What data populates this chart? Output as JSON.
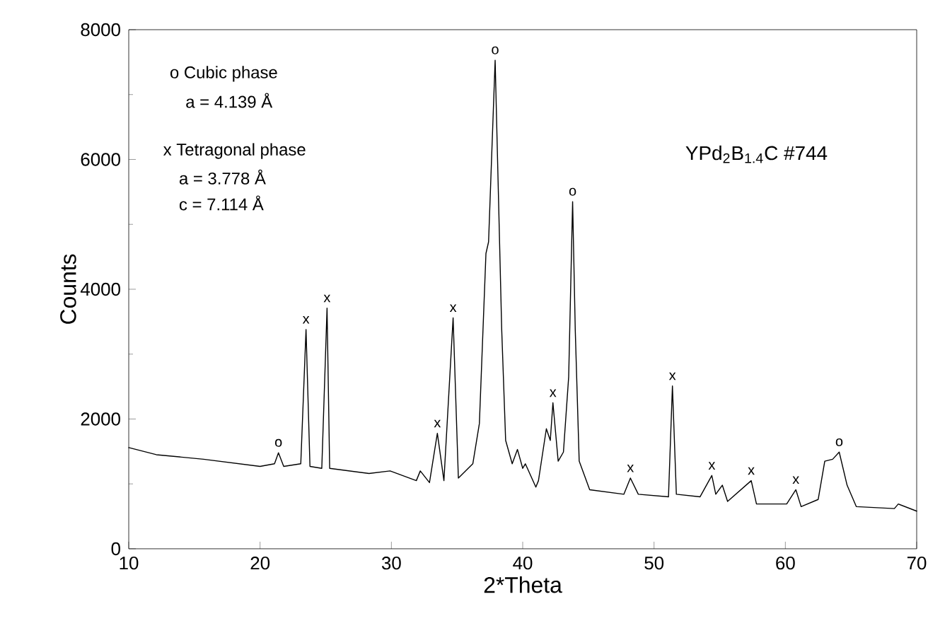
{
  "chart_data": {
    "type": "line",
    "xlabel": "2*Theta",
    "ylabel": "Counts",
    "color": "#000000",
    "x": [
      10,
      12.1,
      15.7,
      20,
      21.1,
      21.4,
      21.8,
      23.1,
      23.5,
      23.8,
      24.7,
      25.1,
      25.3,
      28.3,
      29.9,
      31.9,
      32.2,
      32.9,
      33.5,
      34.0,
      34.7,
      35.1,
      36.2,
      36.7,
      37.2,
      37.4,
      37.9,
      38.4,
      38.7,
      39.2,
      39.6,
      40.0,
      40.2,
      41.0,
      41.2,
      41.8,
      42.1,
      42.3,
      42.7,
      43.1,
      43.5,
      43.8,
      44.0,
      44.3,
      45.1,
      47.7,
      48.2,
      48.8,
      51.1,
      51.4,
      51.7,
      53.5,
      54.4,
      54.7,
      55.2,
      55.6,
      57.4,
      57.8,
      60.1,
      60.8,
      61.2,
      62.5,
      63.0,
      63.6,
      64.1,
      64.7,
      65.4,
      68.3,
      68.6,
      70
    ],
    "values": [
      1560,
      1450,
      1380,
      1270,
      1310,
      1480,
      1270,
      1310,
      3380,
      1270,
      1240,
      3710,
      1240,
      1160,
      1200,
      1050,
      1200,
      1020,
      1780,
      1050,
      3560,
      1090,
      1310,
      1930,
      4550,
      4730,
      7530,
      3380,
      1670,
      1310,
      1530,
      1240,
      1310,
      950,
      1050,
      1850,
      1670,
      2250,
      1350,
      1490,
      2650,
      5350,
      3380,
      1350,
      910,
      840,
      1090,
      840,
      800,
      2510,
      840,
      800,
      1130,
      840,
      980,
      730,
      1050,
      690,
      690,
      910,
      650,
      760,
      1350,
      1380,
      1490,
      980,
      650,
      620,
      690,
      580
    ],
    "xlim": [
      10,
      70
    ],
    "ylim": [
      0,
      8000
    ],
    "xticks": [
      10,
      20,
      30,
      40,
      50,
      60,
      70
    ],
    "yticks": [
      0,
      {
        "value": 1000,
        "label": null
      },
      2000,
      {
        "value": 3000,
        "label": null
      },
      4000,
      {
        "value": 5000,
        "label": null
      },
      6000,
      {
        "value": 7000,
        "label": null
      },
      8000
    ],
    "annotations": [
      "o Cubic phase",
      "a = 4.139 Å",
      "x Tetragonal phase",
      "a = 3.778 Å",
      "c = 7.114 Å",
      "YPd$_{2}$B$_{1.4}$C #744",
      {
        "text": "o",
        "x": 21.4,
        "y": 1480
      },
      {
        "text": "x",
        "x": 23.5,
        "y": 3380
      },
      {
        "text": "x",
        "x": 25.1,
        "y": 3710
      },
      {
        "text": "x",
        "x": 33.5,
        "y": 1780
      },
      {
        "text": "x",
        "x": 34.7,
        "y": 3560
      },
      {
        "text": "o",
        "x": 37.9,
        "y": 7530
      },
      {
        "text": "x",
        "x": 42.3,
        "y": 2250
      },
      {
        "text": "o",
        "x": 43.8,
        "y": 5350
      },
      {
        "text": "x",
        "x": 48.2,
        "y": 1090
      },
      {
        "text": "x",
        "x": 51.4,
        "y": 2510
      },
      {
        "text": "x",
        "x": 54.4,
        "y": 1130
      },
      {
        "text": "x",
        "x": 57.4,
        "y": 1050
      },
      {
        "text": "x",
        "x": 60.8,
        "y": 910
      },
      {
        "text": "o",
        "x": 64.1,
        "y": 1490
      }
    ]
  }
}
